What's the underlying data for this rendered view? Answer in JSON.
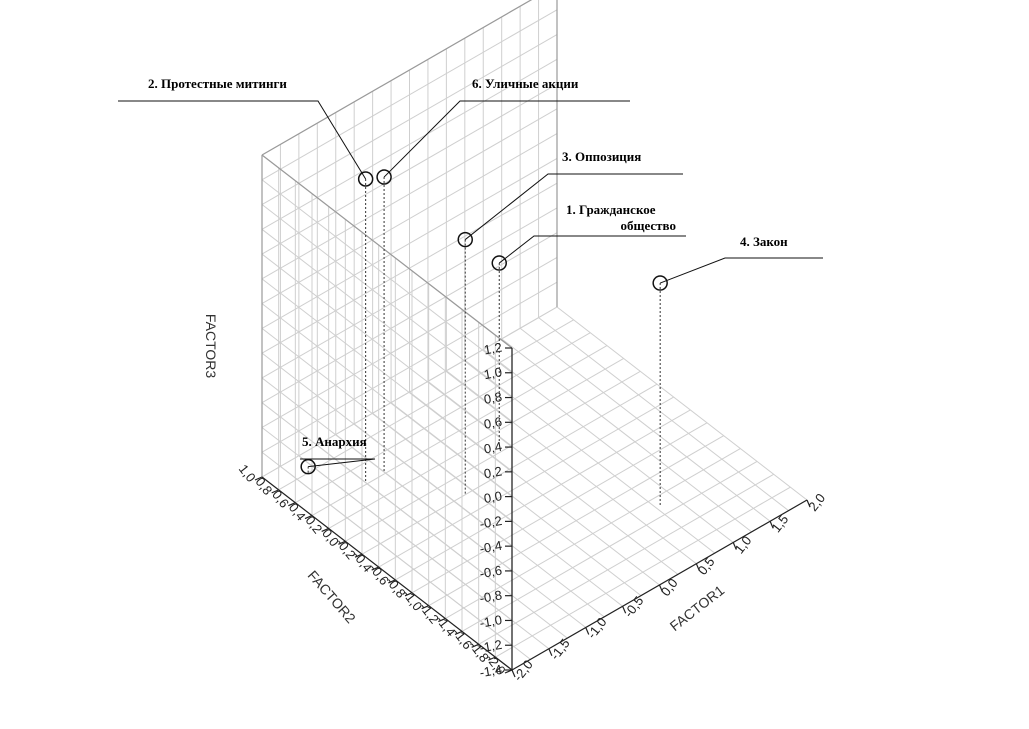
{
  "chart_data": {
    "type": "scatter",
    "axes": {
      "x": {
        "label": "FACTOR1",
        "range": [
          -2.0,
          2.0
        ],
        "ticks": [
          "-2,0",
          "-1,5",
          "-1,0",
          "-0,5",
          "0,0",
          "0,5",
          "1,0",
          "1,5",
          "2,0"
        ]
      },
      "y": {
        "label": "FACTOR2",
        "range": [
          -2.0,
          1.0
        ],
        "ticks": [
          "1,0",
          "0,8",
          "0,6",
          "0,4",
          "0,2",
          "0,0",
          "-0,2",
          "-0,4",
          "-0,6",
          "-0,8",
          "-1,0",
          "-1,2",
          "-1,4",
          "-1,6",
          "-1,8",
          "-2,0"
        ]
      },
      "z": {
        "label": "FACTOR3",
        "range": [
          -1.4,
          1.2
        ],
        "ticks": [
          "1,2",
          "1,0",
          "0,8",
          "0,6",
          "0,4",
          "0,2",
          "0,0",
          "-0,2",
          "-0,4",
          "-0,6",
          "-0,8",
          "-1,0",
          "-1,2",
          "-1,4"
        ]
      }
    },
    "grid": true,
    "points": [
      {
        "label": "2. Протестные митинги",
        "factor1": -1.25,
        "factor2": 0.42,
        "factor3": 1.05
      },
      {
        "label": "6. Уличные акции",
        "factor1": -1.0,
        "factor2": 0.42,
        "factor3": 0.98
      },
      {
        "label": "3. Оппозиция",
        "factor1": -0.6,
        "factor2": -0.2,
        "factor3": 0.66
      },
      {
        "label": "1. Гражданское общество",
        "factor1": 0.2,
        "factor2": 0.1,
        "factor3": 0.04
      },
      {
        "label": "4. Закон",
        "factor1": 0.8,
        "factor2": -1.3,
        "factor3": 0.4
      },
      {
        "label": "5. Анархия",
        "factor1": -1.6,
        "factor2": 0.8,
        "factor3": -1.35
      }
    ]
  }
}
